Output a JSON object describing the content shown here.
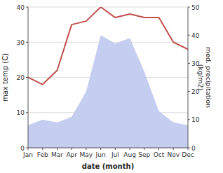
{
  "chart_data": {
    "type": "line",
    "xlabel": "date (month)",
    "ylabel": "max temp (C)",
    "y2label": "med. precipitation\n(kg/m2)",
    "categories": [
      "Jan",
      "Feb",
      "Mar",
      "Apr",
      "May",
      "Jun",
      "Jul",
      "Aug",
      "Sep",
      "Oct",
      "Nov",
      "Dec"
    ],
    "series": [
      {
        "type": "area",
        "axis": "y2",
        "color": "#c5cef0",
        "values": [
          8,
          10,
          9,
          11,
          20,
          40,
          37,
          39,
          27,
          13,
          9,
          8
        ]
      },
      {
        "type": "line",
        "color": "#c0504d",
        "values": [
          20,
          18,
          22,
          35,
          36,
          40,
          37,
          38,
          37,
          37,
          30,
          28
        ]
      }
    ],
    "ylim": [
      0,
      40
    ],
    "yticks": [
      0,
      10,
      20,
      30,
      40
    ],
    "y2lim": [
      0,
      50
    ],
    "y2ticks": [
      0,
      10,
      20,
      30,
      40,
      50
    ],
    "grid": true
  }
}
